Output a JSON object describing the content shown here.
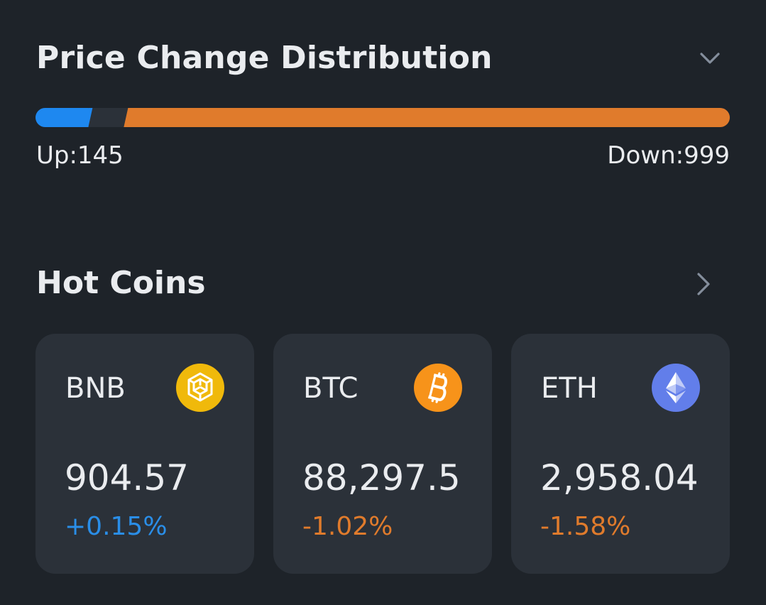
{
  "distribution": {
    "title": "Price Change Distribution",
    "up_label": "Up:145",
    "down_label": "Down:999",
    "up_count": 145,
    "down_count": 999,
    "colors": {
      "up": "#1e88f0",
      "neutral": "#2b3139",
      "down": "#e07b2c"
    },
    "collapse_icon": "chevron-down-icon"
  },
  "hot_coins": {
    "title": "Hot Coins",
    "more_icon": "chevron-right-icon",
    "coins": [
      {
        "symbol": "BNB",
        "price": "904.57",
        "change": "+0.15%",
        "trend": "up",
        "icon": "bnb-icon",
        "icon_color": "#f0b90b"
      },
      {
        "symbol": "BTC",
        "price": "88,297.5",
        "change": "-1.02%",
        "trend": "down",
        "icon": "btc-icon",
        "icon_color": "#f7931a"
      },
      {
        "symbol": "ETH",
        "price": "2,958.04",
        "change": "-1.58%",
        "trend": "down",
        "icon": "eth-icon",
        "icon_color": "#627eea"
      }
    ]
  },
  "colors": {
    "background": "#1e2329",
    "card": "#2b3139",
    "text": "#eaecef",
    "positive": "#2a8ee8",
    "negative": "#e07b2c",
    "chevron": "#848e9c"
  }
}
